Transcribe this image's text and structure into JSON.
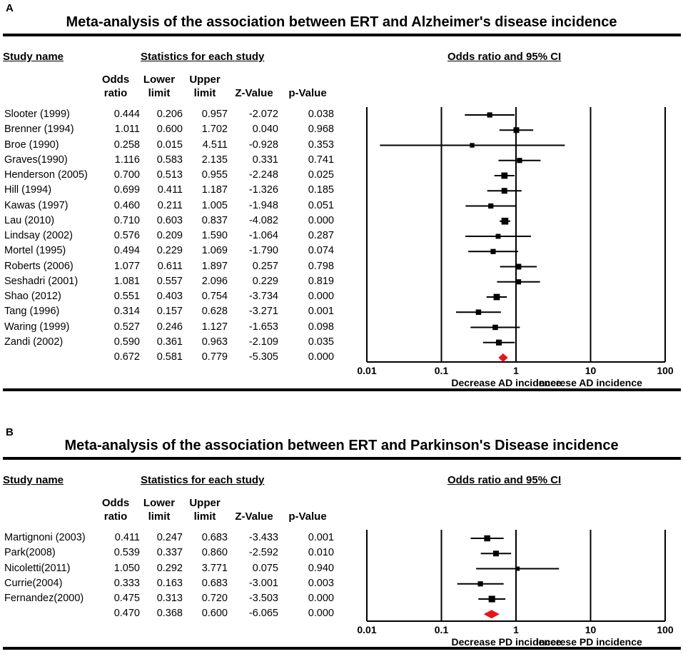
{
  "panels": {
    "A": {
      "letter": "A",
      "title": "Meta-analysis of the association between ERT and Alzheimer's disease incidence",
      "hdr_study": "Study name",
      "hdr_stats": "Statistics for each study",
      "hdr_plot": "Odds ratio and 95% CI",
      "col_or": "Odds ratio",
      "col_lower": "Lower limit",
      "col_upper": "Upper limit",
      "col_z": "Z-Value",
      "col_p": "p-Value",
      "rows": [
        {
          "name": "Slooter (1999)",
          "or": "0.444",
          "lo": "0.206",
          "hi": "0.957",
          "z": "-2.072",
          "p": "0.038"
        },
        {
          "name": "Brenner (1994)",
          "or": "1.011",
          "lo": "0.600",
          "hi": "1.702",
          "z": "0.040",
          "p": "0.968"
        },
        {
          "name": "Broe (1990)",
          "or": "0.258",
          "lo": "0.015",
          "hi": "4.511",
          "z": "-0.928",
          "p": "0.353"
        },
        {
          "name": "Graves(1990)",
          "or": "1.116",
          "lo": "0.583",
          "hi": "2.135",
          "z": "0.331",
          "p": "0.741"
        },
        {
          "name": "Henderson (2005)",
          "or": "0.700",
          "lo": "0.513",
          "hi": "0.955",
          "z": "-2.248",
          "p": "0.025"
        },
        {
          "name": "Hill (1994)",
          "or": "0.699",
          "lo": "0.411",
          "hi": "1.187",
          "z": "-1.326",
          "p": "0.185"
        },
        {
          "name": "Kawas (1997)",
          "or": "0.460",
          "lo": "0.211",
          "hi": "1.005",
          "z": "-1.948",
          "p": "0.051"
        },
        {
          "name": "Lau (2010)",
          "or": "0.710",
          "lo": "0.603",
          "hi": "0.837",
          "z": "-4.082",
          "p": "0.000"
        },
        {
          "name": "Lindsay (2002)",
          "or": "0.576",
          "lo": "0.209",
          "hi": "1.590",
          "z": "-1.064",
          "p": "0.287"
        },
        {
          "name": "Mortel (1995)",
          "or": "0.494",
          "lo": "0.229",
          "hi": "1.069",
          "z": "-1.790",
          "p": "0.074"
        },
        {
          "name": "Roberts (2006)",
          "or": "1.077",
          "lo": "0.611",
          "hi": "1.897",
          "z": "0.257",
          "p": "0.798"
        },
        {
          "name": "Seshadri (2001)",
          "or": "1.081",
          "lo": "0.557",
          "hi": "2.096",
          "z": "0.229",
          "p": "0.819"
        },
        {
          "name": "Shao (2012)",
          "or": "0.551",
          "lo": "0.403",
          "hi": "0.754",
          "z": "-3.734",
          "p": "0.000"
        },
        {
          "name": "Tang (1996)",
          "or": "0.314",
          "lo": "0.157",
          "hi": "0.628",
          "z": "-3.271",
          "p": "0.001"
        },
        {
          "name": "Waring (1999)",
          "or": "0.527",
          "lo": "0.246",
          "hi": "1.127",
          "z": "-1.653",
          "p": "0.098"
        },
        {
          "name": "Zandi (2002)",
          "or": "0.590",
          "lo": "0.361",
          "hi": "0.963",
          "z": "-2.109",
          "p": "0.035"
        }
      ],
      "summary": {
        "or": "0.672",
        "lo": "0.581",
        "hi": "0.779",
        "z": "-5.305",
        "p": "0.000"
      },
      "axis_ticks": [
        "0.01",
        "0.1",
        "1",
        "10",
        "100"
      ],
      "label_left": "Decrease AD incidence",
      "label_right": "incerese AD incidence"
    },
    "B": {
      "letter": "B",
      "title": "Meta-analysis of the association between ERT and Parkinson's Disease incidence",
      "hdr_study": "Study name",
      "hdr_stats": "Statistics for each study",
      "hdr_plot": "Odds ratio and 95% CI",
      "col_or": "Odds ratio",
      "col_lower": "Lower limit",
      "col_upper": "Upper limit",
      "col_z": "Z-Value",
      "col_p": "p-Value",
      "rows": [
        {
          "name": "Martignoni (2003)",
          "or": "0.411",
          "lo": "0.247",
          "hi": "0.683",
          "z": "-3.433",
          "p": "0.001"
        },
        {
          "name": "Park(2008)",
          "or": "0.539",
          "lo": "0.337",
          "hi": "0.860",
          "z": "-2.592",
          "p": "0.010"
        },
        {
          "name": "Nicoletti(2011)",
          "or": "1.050",
          "lo": "0.292",
          "hi": "3.771",
          "z": "0.075",
          "p": "0.940"
        },
        {
          "name": "Currie(2004)",
          "or": "0.333",
          "lo": "0.163",
          "hi": "0.683",
          "z": "-3.001",
          "p": "0.003"
        },
        {
          "name": "Fernandez(2000)",
          "or": "0.475",
          "lo": "0.313",
          "hi": "0.720",
          "z": "-3.503",
          "p": "0.000"
        }
      ],
      "summary": {
        "or": "0.470",
        "lo": "0.368",
        "hi": "0.600",
        "z": "-6.065",
        "p": "0.000"
      },
      "axis_ticks": [
        "0.01",
        "0.1",
        "1",
        "10",
        "100"
      ],
      "label_left": "Decrease PD incidence",
      "label_right": "Incerese PD incidence"
    }
  },
  "colors": {
    "summary_diamond": "#e8141b",
    "ink": "#000000"
  },
  "chart_data": [
    {
      "type": "forest",
      "title": "Meta-analysis of the association between ERT and Alzheimer's disease incidence",
      "xscale": "log",
      "xlim": [
        0.01,
        100
      ],
      "xticks": [
        0.01,
        0.1,
        1,
        10,
        100
      ],
      "xlabel_left": "Decrease AD incidence",
      "xlabel_right": "incerese AD incidence",
      "studies": [
        "Slooter (1999)",
        "Brenner (1994)",
        "Broe (1990)",
        "Graves(1990)",
        "Henderson (2005)",
        "Hill (1994)",
        "Kawas (1997)",
        "Lau (2010)",
        "Lindsay (2002)",
        "Mortel (1995)",
        "Roberts (2006)",
        "Seshadri (2001)",
        "Shao (2012)",
        "Tang (1996)",
        "Waring (1999)",
        "Zandi (2002)"
      ],
      "odds_ratio": [
        0.444,
        1.011,
        0.258,
        1.116,
        0.7,
        0.699,
        0.46,
        0.71,
        0.576,
        0.494,
        1.077,
        1.081,
        0.551,
        0.314,
        0.527,
        0.59
      ],
      "lower": [
        0.206,
        0.6,
        0.015,
        0.583,
        0.513,
        0.411,
        0.211,
        0.603,
        0.209,
        0.229,
        0.611,
        0.557,
        0.403,
        0.157,
        0.246,
        0.361
      ],
      "upper": [
        0.957,
        1.702,
        4.511,
        2.135,
        0.955,
        1.187,
        1.005,
        0.837,
        1.59,
        1.069,
        1.897,
        2.096,
        0.754,
        0.628,
        1.127,
        0.963
      ],
      "weight_marker": [
        2,
        2.5,
        1.5,
        2,
        3,
        2.5,
        2,
        3.5,
        1.8,
        2,
        2.5,
        2,
        3,
        2.2,
        2.2,
        2.6
      ],
      "summary": {
        "odds_ratio": 0.672,
        "lower": 0.581,
        "upper": 0.779
      }
    },
    {
      "type": "forest",
      "title": "Meta-analysis of the association between ERT and Parkinson's Disease incidence",
      "xscale": "log",
      "xlim": [
        0.01,
        100
      ],
      "xticks": [
        0.01,
        0.1,
        1,
        10,
        100
      ],
      "xlabel_left": "Decrease PD incidence",
      "xlabel_right": "Incerese PD incidence",
      "studies": [
        "Martignoni (2003)",
        "Park(2008)",
        "Nicoletti(2011)",
        "Currie(2004)",
        "Fernandez(2000)"
      ],
      "odds_ratio": [
        0.411,
        0.539,
        1.05,
        0.333,
        0.475
      ],
      "lower": [
        0.247,
        0.337,
        0.292,
        0.163,
        0.313
      ],
      "upper": [
        0.683,
        0.86,
        3.771,
        0.683,
        0.72
      ],
      "weight_marker": [
        2.8,
        2.5,
        1.2,
        2.0,
        3.2
      ],
      "summary": {
        "odds_ratio": 0.47,
        "lower": 0.368,
        "upper": 0.6
      }
    }
  ]
}
